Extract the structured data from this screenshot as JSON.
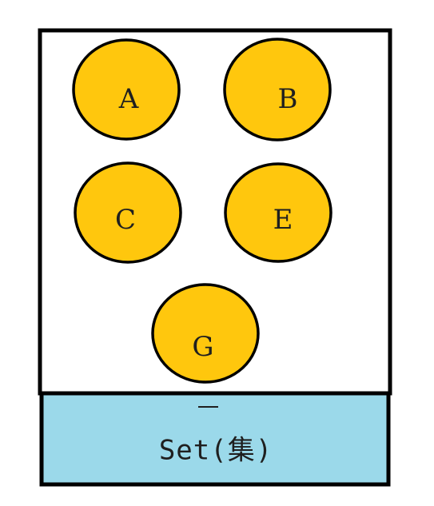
{
  "diagram": {
    "caption": "Set(集)",
    "elements": [
      {
        "label": "A"
      },
      {
        "label": "B"
      },
      {
        "label": "C"
      },
      {
        "label": "E"
      },
      {
        "label": "G"
      }
    ]
  },
  "colors": {
    "element_fill": "#FFC70D",
    "element_stroke": "#000000",
    "container_fill": "#FFFFFF",
    "container_stroke": "#000000",
    "caption_fill": "#9BD9EA",
    "caption_stroke": "#000000"
  }
}
